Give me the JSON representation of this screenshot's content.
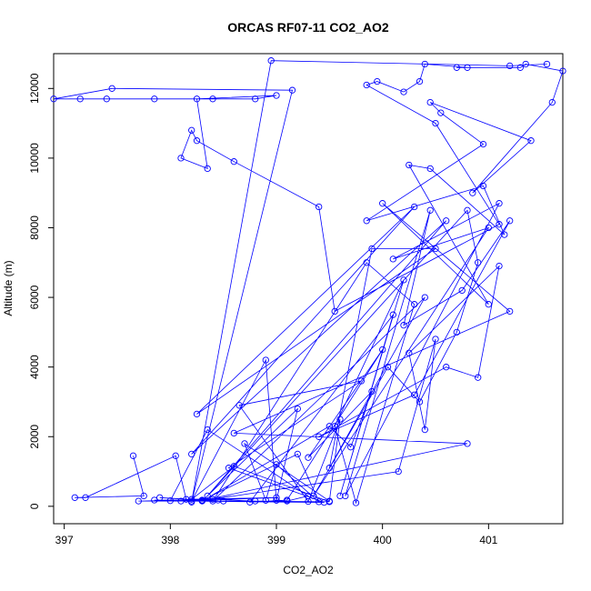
{
  "chart_data": {
    "type": "line",
    "title": "ORCAS RF07-11 CO2_AO2",
    "xlabel": "CO2_AO2",
    "ylabel": "Altitude (m)",
    "xlim": [
      396.9,
      401.7
    ],
    "ylim": [
      -500,
      13000
    ],
    "x_ticks": [
      397,
      398,
      399,
      400,
      401
    ],
    "x_tick_labels": [
      "397",
      "398",
      "399",
      "400",
      "401"
    ],
    "y_ticks": [
      0,
      2000,
      4000,
      6000,
      8000,
      10000,
      12000
    ],
    "y_tick_labels": [
      "0",
      "2000",
      "4000",
      "6000",
      "8000",
      "10000",
      "12000"
    ],
    "grid": false,
    "series_color": "#0000ff",
    "marker": "open-circle",
    "points": [
      [
        397.65,
        1450
      ],
      [
        397.75,
        300
      ],
      [
        397.1,
        250
      ],
      [
        397.2,
        250
      ],
      [
        398.05,
        1450
      ],
      [
        398.15,
        200
      ],
      [
        397.9,
        250
      ],
      [
        398.3,
        180
      ],
      [
        397.85,
        180
      ],
      [
        398.5,
        150
      ],
      [
        397.7,
        150
      ],
      [
        398.4,
        200
      ],
      [
        398.8,
        150
      ],
      [
        399.5,
        130
      ],
      [
        398.6,
        1150
      ],
      [
        398.2,
        200
      ],
      [
        399.0,
        250
      ],
      [
        398.1,
        150
      ],
      [
        399.1,
        150
      ],
      [
        399.3,
        300
      ],
      [
        398.35,
        2200
      ],
      [
        398.0,
        160
      ],
      [
        398.45,
        180
      ],
      [
        398.3,
        170
      ],
      [
        399.2,
        1500
      ],
      [
        399.4,
        130
      ],
      [
        399.0,
        1200
      ],
      [
        398.9,
        170
      ],
      [
        398.7,
        1800
      ],
      [
        399.5,
        150
      ],
      [
        399.6,
        2500
      ],
      [
        399.3,
        140
      ],
      [
        398.65,
        2900
      ],
      [
        399.8,
        3600
      ],
      [
        398.55,
        1100
      ],
      [
        399.45,
        110
      ],
      [
        398.2,
        150
      ],
      [
        398.9,
        4200
      ],
      [
        399.0,
        170
      ],
      [
        399.2,
        2800
      ],
      [
        398.3,
        150
      ],
      [
        399.5,
        2300
      ],
      [
        399.7,
        1700
      ],
      [
        399.9,
        3300
      ],
      [
        399.3,
        1400
      ],
      [
        400.0,
        4500
      ],
      [
        399.1,
        180
      ],
      [
        398.75,
        120
      ],
      [
        400.1,
        5500
      ],
      [
        399.6,
        300
      ],
      [
        400.2,
        6500
      ],
      [
        399.55,
        2300
      ],
      [
        399.75,
        100
      ],
      [
        400.3,
        5800
      ],
      [
        399.85,
        7000
      ],
      [
        398.4,
        150
      ],
      [
        400.4,
        6000
      ],
      [
        399.5,
        1100
      ],
      [
        399.9,
        7400
      ],
      [
        400.5,
        7400
      ],
      [
        398.25,
        2650
      ],
      [
        400.3,
        8600
      ],
      [
        398.2,
        1500
      ],
      [
        400.6,
        8200
      ],
      [
        398.35,
        300
      ],
      [
        400.8,
        8500
      ],
      [
        400.9,
        7000
      ],
      [
        400.7,
        5000
      ],
      [
        400.35,
        3000
      ],
      [
        400.05,
        4000
      ],
      [
        399.35,
        300
      ],
      [
        401.0,
        8000
      ],
      [
        400.1,
        7100
      ],
      [
        401.1,
        8700
      ],
      [
        399.65,
        300
      ],
      [
        400.45,
        8500
      ],
      [
        400.2,
        5200
      ],
      [
        400.75,
        6200
      ],
      [
        401.2,
        8200
      ],
      [
        400.3,
        3200
      ],
      [
        399.4,
        2000
      ],
      [
        400.6,
        4000
      ],
      [
        400.9,
        3700
      ],
      [
        401.1,
        6900
      ],
      [
        400.25,
        4400
      ],
      [
        400.4,
        2200
      ],
      [
        400.5,
        4800
      ],
      [
        400.15,
        1000
      ],
      [
        398.3,
        160
      ],
      [
        400.8,
        1800
      ],
      [
        398.6,
        2100
      ],
      [
        401.2,
        5600
      ],
      [
        400.0,
        8700
      ],
      [
        401.0,
        5800
      ],
      [
        400.25,
        9800
      ],
      [
        400.45,
        9700
      ],
      [
        401.15,
        7800
      ],
      [
        400.95,
        9200
      ],
      [
        399.85,
        8200
      ],
      [
        400.95,
        10400
      ],
      [
        400.55,
        11300
      ],
      [
        400.45,
        11600
      ],
      [
        401.4,
        10500
      ],
      [
        400.85,
        9000
      ],
      [
        401.6,
        11600
      ],
      [
        401.7,
        12500
      ],
      [
        401.35,
        12700
      ],
      [
        401.3,
        12600
      ],
      [
        400.7,
        12600
      ],
      [
        400.8,
        12600
      ],
      [
        400.4,
        12700
      ],
      [
        400.35,
        12200
      ],
      [
        400.2,
        11900
      ],
      [
        399.95,
        12200
      ],
      [
        399.85,
        12100
      ],
      [
        400.5,
        11000
      ],
      [
        401.1,
        8100
      ],
      [
        399.55,
        5600
      ],
      [
        399.4,
        8600
      ],
      [
        398.6,
        9900
      ],
      [
        398.25,
        10500
      ],
      [
        398.2,
        10800
      ],
      [
        398.1,
        10000
      ],
      [
        398.35,
        9700
      ],
      [
        398.25,
        11700
      ],
      [
        399.0,
        11800
      ],
      [
        398.8,
        11700
      ],
      [
        398.4,
        11700
      ],
      [
        397.85,
        11700
      ],
      [
        397.4,
        11700
      ],
      [
        397.15,
        11700
      ],
      [
        396.9,
        11700
      ],
      [
        397.45,
        12000
      ],
      [
        399.15,
        11950
      ],
      [
        398.2,
        120
      ],
      [
        398.95,
        12800
      ],
      [
        401.2,
        12650
      ],
      [
        401.55,
        12700
      ]
    ]
  }
}
